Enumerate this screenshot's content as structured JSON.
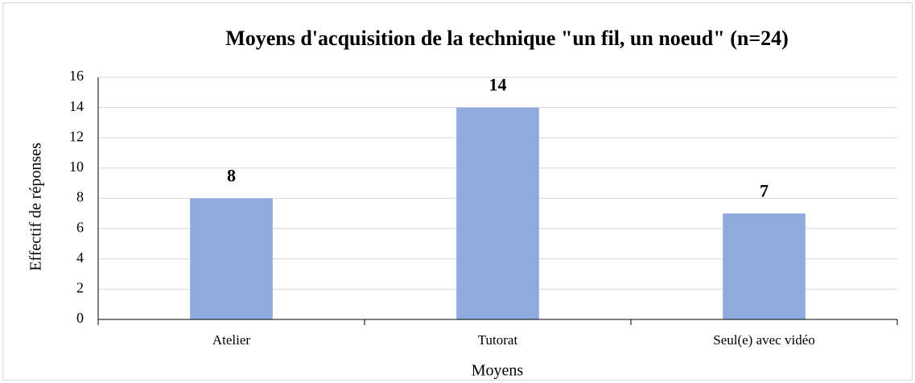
{
  "chart_data": {
    "type": "bar",
    "title": "Moyens d'acquisition de la technique \"un fil, un noeud\" (n=24)",
    "x_label": "Moyens",
    "y_label": "Effectif de réponses",
    "categories": [
      "Atelier",
      "Tutorat",
      "Seul(e) avec vidéo"
    ],
    "values": [
      8,
      14,
      7
    ],
    "color": "#8faadc",
    "ylim": [
      0,
      16
    ],
    "yticks": [
      0,
      2,
      4,
      6,
      8,
      10,
      12,
      14,
      16
    ],
    "grid": true
  }
}
